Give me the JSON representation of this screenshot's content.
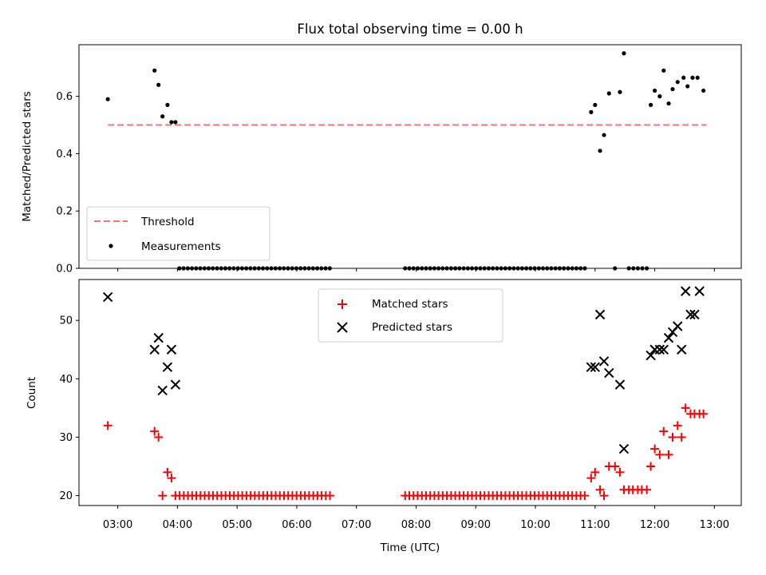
{
  "chart_data": [
    {
      "type": "scatter",
      "title": "Flux total observing time = 0.00 h",
      "xlabel": "",
      "ylabel": "Matched/Predicted stars",
      "ylim": [
        0.0,
        0.78
      ],
      "yticks": [
        0.0,
        0.2,
        0.4,
        0.6
      ],
      "ytick_labels": [
        "0.0",
        "0.2",
        "0.4",
        "0.6"
      ],
      "threshold": {
        "name": "Threshold",
        "y": 0.5,
        "x_range": [
          "02:50",
          "12:52"
        ],
        "color": "#ff6f6f"
      },
      "legend": {
        "placement": "lower-left",
        "entries": [
          "Threshold",
          "Measurements"
        ]
      },
      "series": [
        {
          "name": "Measurements",
          "color": "#000000",
          "points": [
            [
              "02:50",
              0.59
            ],
            [
              "03:37",
              0.69
            ],
            [
              "03:41",
              0.64
            ],
            [
              "03:45",
              0.53
            ],
            [
              "03:50",
              0.57
            ],
            [
              "03:54",
              0.51
            ],
            [
              "03:58",
              0.51
            ],
            [
              "10:56",
              0.545
            ],
            [
              "11:00",
              0.57
            ],
            [
              "11:05",
              0.41
            ],
            [
              "11:09",
              0.465
            ],
            [
              "11:14",
              0.61
            ],
            [
              "11:25",
              0.615
            ],
            [
              "11:29",
              0.75
            ],
            [
              "11:56",
              0.57
            ],
            [
              "12:00",
              0.62
            ],
            [
              "12:05",
              0.6
            ],
            [
              "12:09",
              0.69
            ],
            [
              "12:14",
              0.575
            ],
            [
              "12:18",
              0.625
            ],
            [
              "12:23",
              0.65
            ],
            [
              "12:29",
              0.665
            ],
            [
              "12:33",
              0.635
            ],
            [
              "12:38",
              0.665
            ],
            [
              "12:43",
              0.665
            ],
            [
              "12:49",
              0.62
            ]
          ],
          "zero_runs": [
            {
              "start": "04:02",
              "end": "06:35",
              "step_min": 4.2
            },
            {
              "start": "07:49",
              "end": "10:51",
              "step_min": 4.2
            },
            {
              "start": "11:20",
              "end": "11:20",
              "step_min": 1
            },
            {
              "start": "11:34",
              "end": "11:52",
              "step_min": 4.5
            }
          ]
        }
      ]
    },
    {
      "type": "scatter",
      "title": "",
      "xlabel": "Time (UTC)",
      "ylabel": "Count",
      "ylim": [
        18.3,
        57.0
      ],
      "yticks": [
        20,
        30,
        40,
        50
      ],
      "ytick_labels": [
        "20",
        "30",
        "40",
        "50"
      ],
      "xlim": [
        "02:21",
        "13:27"
      ],
      "xticks": [
        "03:00",
        "04:00",
        "05:00",
        "06:00",
        "07:00",
        "08:00",
        "09:00",
        "10:00",
        "11:00",
        "12:00",
        "13:00"
      ],
      "legend": {
        "placement": "top-center",
        "entries": [
          "Matched stars",
          "Predicted stars"
        ]
      },
      "series": [
        {
          "name": "Matched stars",
          "marker": "+",
          "color": "#ff0000",
          "points": [
            [
              "02:50",
              32
            ],
            [
              "03:37",
              31
            ],
            [
              "03:41",
              30
            ],
            [
              "03:45",
              20
            ],
            [
              "03:50",
              24
            ],
            [
              "03:54",
              23
            ],
            [
              "10:56",
              23
            ],
            [
              "11:00",
              24
            ],
            [
              "11:05",
              21
            ],
            [
              "11:09",
              20
            ],
            [
              "11:14",
              25
            ],
            [
              "11:20",
              25
            ],
            [
              "11:25",
              24
            ],
            [
              "11:29",
              21
            ],
            [
              "11:34",
              21
            ],
            [
              "11:38",
              21
            ],
            [
              "11:43",
              21
            ],
            [
              "11:47",
              21
            ],
            [
              "11:52",
              21
            ],
            [
              "11:56",
              25
            ],
            [
              "12:00",
              28
            ],
            [
              "12:05",
              27
            ],
            [
              "12:09",
              31
            ],
            [
              "12:14",
              27
            ],
            [
              "12:18",
              30
            ],
            [
              "12:23",
              32
            ],
            [
              "12:27",
              30
            ],
            [
              "12:31",
              35
            ],
            [
              "12:36",
              34
            ],
            [
              "12:40",
              34
            ],
            [
              "12:45",
              34
            ],
            [
              "12:49",
              34
            ]
          ],
          "constant_runs": [
            {
              "start": "03:58",
              "end": "06:35",
              "step_min": 4.2,
              "value": 20
            },
            {
              "start": "07:49",
              "end": "10:51",
              "step_min": 4.2,
              "value": 20
            }
          ]
        },
        {
          "name": "Predicted stars",
          "marker": "x",
          "color": "#000000",
          "points": [
            [
              "02:50",
              54
            ],
            [
              "03:37",
              45
            ],
            [
              "03:41",
              47
            ],
            [
              "03:45",
              38
            ],
            [
              "03:50",
              42
            ],
            [
              "03:54",
              45
            ],
            [
              "03:58",
              39
            ],
            [
              "10:56",
              42
            ],
            [
              "11:00",
              42
            ],
            [
              "11:05",
              51
            ],
            [
              "11:09",
              43
            ],
            [
              "11:14",
              41
            ],
            [
              "11:25",
              39
            ],
            [
              "11:29",
              28
            ],
            [
              "11:56",
              44
            ],
            [
              "12:00",
              45
            ],
            [
              "12:05",
              45
            ],
            [
              "12:09",
              45
            ],
            [
              "12:14",
              47
            ],
            [
              "12:18",
              48
            ],
            [
              "12:23",
              49
            ],
            [
              "12:27",
              45
            ],
            [
              "12:31",
              55
            ],
            [
              "12:36",
              51
            ],
            [
              "12:40",
              51
            ],
            [
              "12:45",
              55
            ]
          ]
        }
      ]
    }
  ]
}
